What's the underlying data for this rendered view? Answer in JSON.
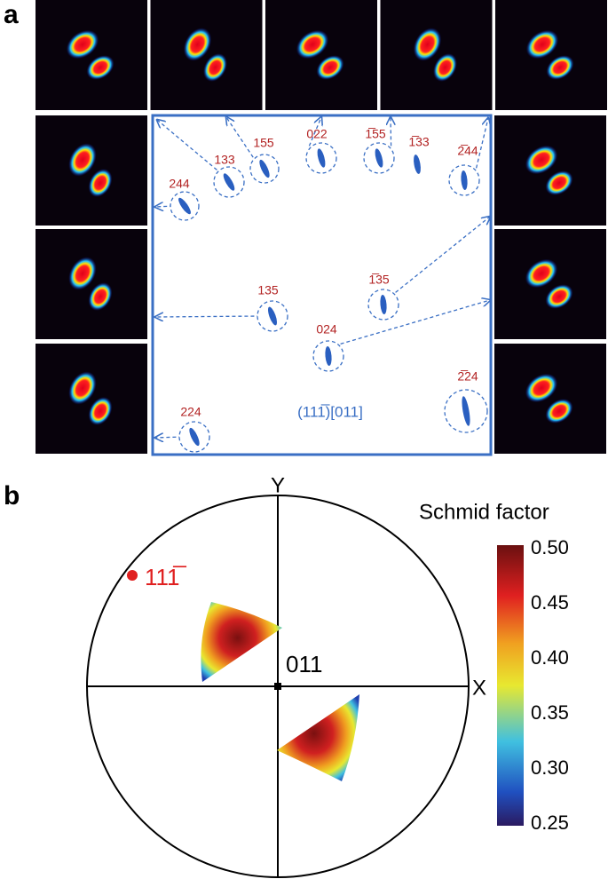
{
  "panel_a": {
    "label": "a",
    "spots": [
      {
        "label": "244"
      },
      {
        "label": "133"
      },
      {
        "label": "155"
      },
      {
        "label": "022"
      },
      {
        "label": "1̅55"
      },
      {
        "label": "1̅33"
      },
      {
        "label": "2̅44"
      },
      {
        "label": "135"
      },
      {
        "label": "1̅35"
      },
      {
        "label": "024"
      },
      {
        "label": "2̅24"
      },
      {
        "label": "224"
      }
    ],
    "caption": "(111̅)[011]"
  },
  "panel_b": {
    "label": "b",
    "axis_y": "Y",
    "axis_x": "X",
    "pole": "111̅",
    "center": "011",
    "colorbar": {
      "title": "Schmid factor",
      "ticks": [
        "0.50",
        "0.45",
        "0.40",
        "0.35",
        "0.30",
        "0.25"
      ]
    }
  }
}
